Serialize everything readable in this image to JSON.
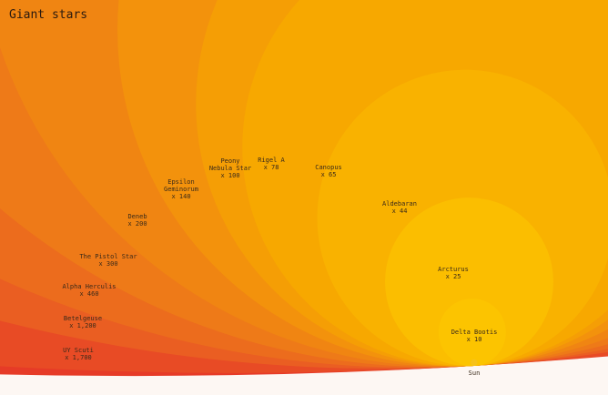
{
  "chart_data": {
    "type": "nested-circles",
    "title": "Giant stars",
    "categories": [
      "UY Scuti",
      "Betelgeuse",
      "Alpha Herculis",
      "The Pistol Star",
      "Deneb",
      "Epsilon Geminorum",
      "Peony Nebula Star",
      "Rigel A",
      "Canopus",
      "Aldebaran",
      "Arcturus",
      "Delta Bootis",
      "Sun"
    ],
    "values": [
      1700,
      1200,
      460,
      300,
      200,
      140,
      100,
      78,
      65,
      44,
      25,
      10,
      1
    ],
    "value_labels": [
      "x 1,700",
      "x 1,200",
      "x 460",
      "x 300",
      "x 200",
      "x 140",
      "x 100",
      "x 78",
      "x 65",
      "x 44",
      "x 25",
      "x 10",
      null
    ],
    "colors": [
      "#e63b27",
      "#e84b25",
      "#ea5e22",
      "#ec6c1d",
      "#ee7a18",
      "#f08512",
      "#f3920c",
      "#f59e05",
      "#f7a800",
      "#f9b200",
      "#fbbe00",
      "#fcc400",
      "#f7c21a"
    ]
  }
}
